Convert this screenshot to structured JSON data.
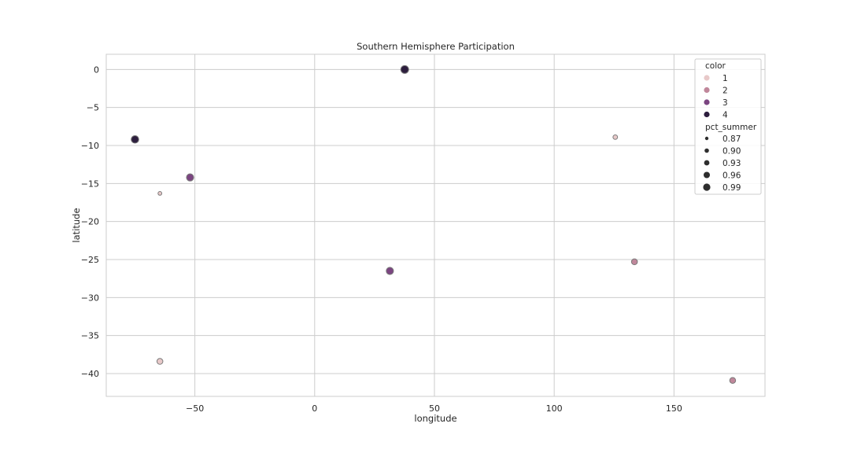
{
  "chart_data": {
    "type": "scatter",
    "title": "Southern Hemisphere Participation",
    "xlabel": "longitude",
    "ylabel": "latitude",
    "xlim": [
      -87,
      188
    ],
    "ylim": [
      -43,
      2
    ],
    "xticks": [
      -50,
      0,
      50,
      100,
      150
    ],
    "yticks": [
      0,
      -5,
      -10,
      -15,
      -20,
      -25,
      -30,
      -35,
      -40
    ],
    "grid": true,
    "hue_name": "color",
    "size_name": "pct_summer",
    "hue_levels": [
      {
        "label": "1",
        "color": "#e8c9c9"
      },
      {
        "label": "2",
        "color": "#c0879b"
      },
      {
        "label": "3",
        "color": "#7b4581"
      },
      {
        "label": "4",
        "color": "#2d1e3e"
      }
    ],
    "size_levels": [
      "0.87",
      "0.90",
      "0.93",
      "0.96",
      "0.99"
    ],
    "legend_position": "upper right",
    "points": [
      {
        "x": 37.6,
        "y": 0.0,
        "color": 4,
        "pct_summer": 0.99
      },
      {
        "x": -75.0,
        "y": -9.2,
        "color": 4,
        "pct_summer": 0.98
      },
      {
        "x": 125.5,
        "y": -8.9,
        "color": 1,
        "pct_summer": 0.89
      },
      {
        "x": -52.0,
        "y": -14.2,
        "color": 3,
        "pct_summer": 0.97
      },
      {
        "x": -64.6,
        "y": -16.3,
        "color": 1,
        "pct_summer": 0.865
      },
      {
        "x": 133.5,
        "y": -25.3,
        "color": 2,
        "pct_summer": 0.93
      },
      {
        "x": 31.4,
        "y": -26.5,
        "color": 3,
        "pct_summer": 0.97
      },
      {
        "x": -64.6,
        "y": -38.4,
        "color": 1,
        "pct_summer": 0.93
      },
      {
        "x": 174.5,
        "y": -40.9,
        "color": 2,
        "pct_summer": 0.93
      }
    ]
  }
}
